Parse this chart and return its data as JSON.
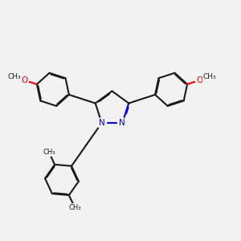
{
  "bg_color": "#f2f2f2",
  "bond_color": "#1a1a1a",
  "N_color": "#0000ee",
  "O_color": "#ee0000",
  "bond_width": 1.5,
  "dbo": 0.018,
  "figsize": [
    3.0,
    3.0
  ],
  "dpi": 100,
  "xlim": [
    0.0,
    6.0
  ],
  "ylim": [
    -3.5,
    3.5
  ]
}
